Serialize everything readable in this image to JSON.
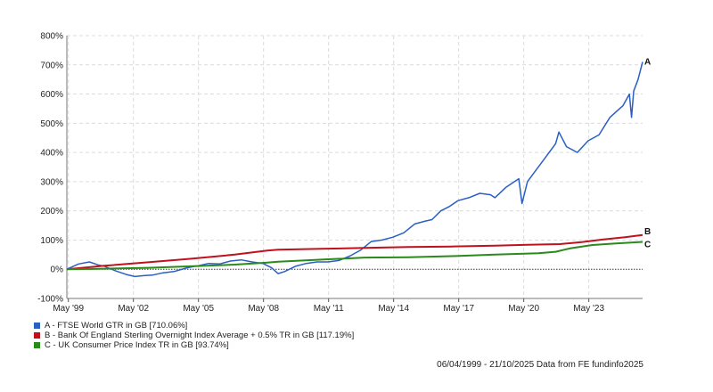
{
  "chart_data": {
    "type": "line",
    "title": "",
    "xlabel": "",
    "ylabel": "",
    "ylim": [
      -100,
      800
    ],
    "xlim": [
      1999.26,
      2025.81
    ],
    "y_ticks": [
      -100,
      0,
      100,
      200,
      300,
      400,
      500,
      600,
      700,
      800
    ],
    "y_tick_labels": [
      "-100%",
      "0%",
      "100%",
      "200%",
      "300%",
      "400%",
      "500%",
      "600%",
      "700%",
      "800%"
    ],
    "x_ticks": [
      1999.33,
      2002.33,
      2005.33,
      2008.33,
      2011.33,
      2014.33,
      2017.33,
      2020.33,
      2023.33
    ],
    "x_tick_labels": [
      "May '99",
      "May '02",
      "May '05",
      "May '08",
      "May '11",
      "May '14",
      "May '17",
      "May '20",
      "May '23"
    ],
    "grid": true,
    "legend_position": "bottom-left",
    "series": [
      {
        "name": "A - FTSE World GTR in GB [710.06%]",
        "end_label": "A",
        "color": "#2a5fc4",
        "x": [
          1999.26,
          1999.8,
          2000.3,
          2000.7,
          2001.0,
          2001.5,
          2002.0,
          2002.4,
          2002.8,
          2003.2,
          2003.7,
          2004.2,
          2004.8,
          2005.3,
          2005.8,
          2006.3,
          2006.8,
          2007.3,
          2007.8,
          2008.3,
          2008.7,
          2009.0,
          2009.3,
          2009.8,
          2010.3,
          2010.8,
          2011.3,
          2011.8,
          2012.3,
          2012.8,
          2013.3,
          2013.8,
          2014.3,
          2014.8,
          2015.3,
          2015.8,
          2016.1,
          2016.5,
          2016.9,
          2017.3,
          2017.8,
          2018.3,
          2018.8,
          2019.0,
          2019.5,
          2019.9,
          2020.1,
          2020.25,
          2020.5,
          2020.9,
          2021.3,
          2021.8,
          2021.95,
          2022.3,
          2022.8,
          2023.3,
          2023.8,
          2024.3,
          2024.6,
          2024.9,
          2025.2,
          2025.3,
          2025.4,
          2025.6,
          2025.81
        ],
        "values": [
          0,
          18,
          25,
          15,
          10,
          -5,
          -18,
          -25,
          -22,
          -20,
          -12,
          -8,
          5,
          12,
          20,
          18,
          28,
          32,
          25,
          20,
          5,
          -15,
          -8,
          10,
          20,
          25,
          25,
          30,
          45,
          65,
          95,
          100,
          110,
          125,
          155,
          165,
          170,
          200,
          215,
          235,
          245,
          260,
          255,
          245,
          280,
          300,
          310,
          225,
          300,
          340,
          380,
          430,
          470,
          420,
          400,
          440,
          460,
          520,
          540,
          560,
          600,
          520,
          610,
          650,
          710.06
        ]
      },
      {
        "name": "B - Bank Of England Sterling Overnight Index Average + 0.5% TR in GB [117.19%]",
        "end_label": "B",
        "color": "#c0111f",
        "x": [
          1999.26,
          2001.0,
          2003.0,
          2005.0,
          2007.0,
          2008.5,
          2009.0,
          2011.0,
          2013.0,
          2015.0,
          2017.0,
          2019.0,
          2020.5,
          2022.0,
          2023.0,
          2024.0,
          2025.0,
          2025.81
        ],
        "values": [
          0,
          12,
          24,
          36,
          50,
          64,
          67,
          70,
          73,
          76,
          78,
          81,
          84,
          86,
          93,
          102,
          110,
          117.19
        ]
      },
      {
        "name": "C - UK Consumer Price Index TR in GB [93.74%]",
        "end_label": "C",
        "color": "#2a8a1a",
        "x": [
          1999.26,
          2001.0,
          2003.0,
          2005.0,
          2007.0,
          2008.5,
          2009.0,
          2011.0,
          2013.0,
          2015.0,
          2017.0,
          2019.0,
          2021.0,
          2021.8,
          2022.5,
          2023.5,
          2024.5,
          2025.81
        ],
        "values": [
          0,
          2,
          5,
          10,
          16,
          23,
          26,
          33,
          40,
          41,
          45,
          50,
          55,
          60,
          72,
          83,
          88,
          93.74
        ]
      }
    ],
    "source_text": "06/04/1999 - 21/10/2025 Data from FE fundinfo2025"
  }
}
